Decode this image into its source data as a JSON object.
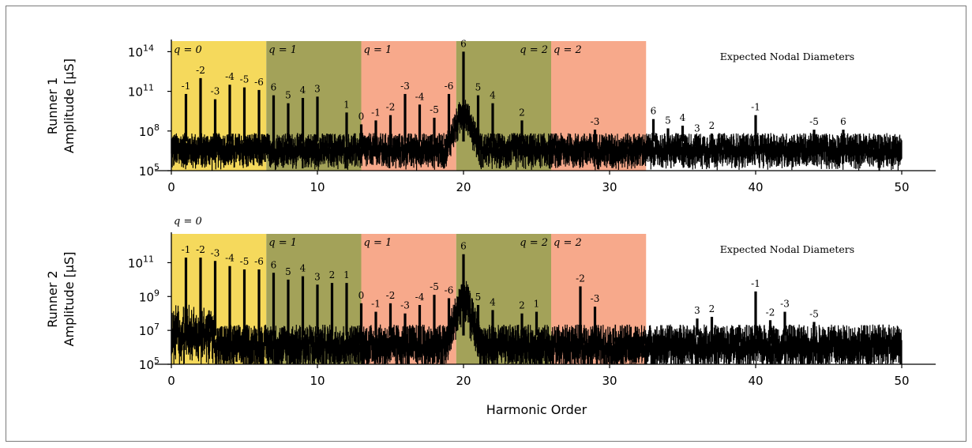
{
  "chart_data": [
    {
      "type": "line",
      "ylabel_lines": [
        "Runner 1",
        "Amplitude [μS]"
      ],
      "xlabel": "",
      "xlim": [
        0,
        50
      ],
      "xticks": [
        0,
        10,
        20,
        30,
        40,
        50
      ],
      "yscale": "log",
      "ylim_exp": [
        5,
        14.8
      ],
      "yticks_exp": [
        5,
        8,
        11,
        14
      ],
      "noise_floor_exp": 7.2,
      "bands": [
        {
          "x0": 0,
          "x1": 6.5,
          "color": "#f5d95c",
          "label": "q = 0",
          "label_side": "left"
        },
        {
          "x0": 6.5,
          "x1": 13,
          "color": "#a3a259",
          "label": "q = 1",
          "label_side": "left"
        },
        {
          "x0": 13,
          "x1": 19.5,
          "color": "#f7a98b",
          "label": "q = 1",
          "label_side": "left"
        },
        {
          "x0": 19.5,
          "x1": 26,
          "color": "#a3a259",
          "label": "q = 2",
          "label_side": "right"
        },
        {
          "x0": 26,
          "x1": 32.5,
          "color": "#f7a98b",
          "label": "q = 2",
          "label_side": "left"
        }
      ],
      "legend_title": "Expected Nodal Diameters",
      "peaks": [
        {
          "x": 1,
          "y_exp": 10.8,
          "label": "-1"
        },
        {
          "x": 2,
          "y_exp": 12.0,
          "label": "-2"
        },
        {
          "x": 3,
          "y_exp": 10.4,
          "label": "-3"
        },
        {
          "x": 4,
          "y_exp": 11.5,
          "label": "-4"
        },
        {
          "x": 5,
          "y_exp": 11.3,
          "label": "-5"
        },
        {
          "x": 6,
          "y_exp": 11.1,
          "label": "-6"
        },
        {
          "x": 7,
          "y_exp": 10.7,
          "label": "6"
        },
        {
          "x": 8,
          "y_exp": 10.1,
          "label": "5"
        },
        {
          "x": 9,
          "y_exp": 10.5,
          "label": "4"
        },
        {
          "x": 10,
          "y_exp": 10.6,
          "label": "3"
        },
        {
          "x": 12,
          "y_exp": 9.4,
          "label": "1"
        },
        {
          "x": 13,
          "y_exp": 8.5,
          "label": "0"
        },
        {
          "x": 14,
          "y_exp": 8.8,
          "label": "-1"
        },
        {
          "x": 15,
          "y_exp": 9.2,
          "label": "-2"
        },
        {
          "x": 16,
          "y_exp": 10.8,
          "label": "-3"
        },
        {
          "x": 17,
          "y_exp": 10.0,
          "label": "-4"
        },
        {
          "x": 18,
          "y_exp": 9.0,
          "label": "-5"
        },
        {
          "x": 19,
          "y_exp": 10.8,
          "label": "-6"
        },
        {
          "x": 20,
          "y_exp": 14.0,
          "label": "6"
        },
        {
          "x": 21,
          "y_exp": 10.7,
          "label": "5"
        },
        {
          "x": 22,
          "y_exp": 10.1,
          "label": "4"
        },
        {
          "x": 24,
          "y_exp": 8.8,
          "label": "2"
        },
        {
          "x": 29,
          "y_exp": 8.1,
          "label": "-3"
        },
        {
          "x": 33,
          "y_exp": 8.9,
          "label": "6"
        },
        {
          "x": 34,
          "y_exp": 8.2,
          "label": "5"
        },
        {
          "x": 35,
          "y_exp": 8.4,
          "label": "4"
        },
        {
          "x": 36,
          "y_exp": 7.6,
          "label": "3"
        },
        {
          "x": 37,
          "y_exp": 7.8,
          "label": "2"
        },
        {
          "x": 40,
          "y_exp": 9.2,
          "label": "-1"
        },
        {
          "x": 44,
          "y_exp": 8.1,
          "label": "-5"
        },
        {
          "x": 46,
          "y_exp": 8.1,
          "label": "6"
        }
      ]
    },
    {
      "type": "line",
      "ylabel_lines": [
        "Runner 2",
        "Amplitude [μS]"
      ],
      "xlabel": "Harmonic Order",
      "xlim": [
        0,
        50
      ],
      "xticks": [
        0,
        10,
        20,
        30,
        40,
        50
      ],
      "yscale": "log",
      "ylim_exp": [
        5,
        12.7
      ],
      "yticks_exp": [
        5,
        7,
        9,
        11
      ],
      "noise_floor_exp": 6.7,
      "bands": [
        {
          "x0": 0,
          "x1": 6.5,
          "color": "#f5d95c",
          "label": "q = 0",
          "label_side": "above"
        },
        {
          "x0": 6.5,
          "x1": 13,
          "color": "#a3a259",
          "label": "q = 1",
          "label_side": "left"
        },
        {
          "x0": 13,
          "x1": 19.5,
          "color": "#f7a98b",
          "label": "q = 1",
          "label_side": "left"
        },
        {
          "x0": 19.5,
          "x1": 26,
          "color": "#a3a259",
          "label": "q = 2",
          "label_side": "right"
        },
        {
          "x0": 26,
          "x1": 32.5,
          "color": "#f7a98b",
          "label": "q = 2",
          "label_side": "left"
        }
      ],
      "legend_title": "Expected Nodal Diameters",
      "peaks": [
        {
          "x": 1,
          "y_exp": 11.3,
          "label": "-1"
        },
        {
          "x": 2,
          "y_exp": 11.3,
          "label": "-2"
        },
        {
          "x": 3,
          "y_exp": 11.1,
          "label": "-3"
        },
        {
          "x": 4,
          "y_exp": 10.8,
          "label": "-4"
        },
        {
          "x": 5,
          "y_exp": 10.6,
          "label": "-5"
        },
        {
          "x": 6,
          "y_exp": 10.6,
          "label": "-6"
        },
        {
          "x": 7,
          "y_exp": 10.4,
          "label": "6"
        },
        {
          "x": 8,
          "y_exp": 10.0,
          "label": "5"
        },
        {
          "x": 9,
          "y_exp": 10.2,
          "label": "4"
        },
        {
          "x": 10,
          "y_exp": 9.7,
          "label": "3"
        },
        {
          "x": 11,
          "y_exp": 9.8,
          "label": "2"
        },
        {
          "x": 12,
          "y_exp": 9.8,
          "label": "1"
        },
        {
          "x": 13,
          "y_exp": 8.6,
          "label": "0"
        },
        {
          "x": 14,
          "y_exp": 8.1,
          "label": "-1"
        },
        {
          "x": 15,
          "y_exp": 8.6,
          "label": "-2"
        },
        {
          "x": 16,
          "y_exp": 8.0,
          "label": "-3"
        },
        {
          "x": 17,
          "y_exp": 8.5,
          "label": "-4"
        },
        {
          "x": 18,
          "y_exp": 9.1,
          "label": "-5"
        },
        {
          "x": 19,
          "y_exp": 8.9,
          "label": "-6"
        },
        {
          "x": 20,
          "y_exp": 11.5,
          "label": "6"
        },
        {
          "x": 21,
          "y_exp": 8.5,
          "label": "5"
        },
        {
          "x": 22,
          "y_exp": 8.2,
          "label": "4"
        },
        {
          "x": 24,
          "y_exp": 8.0,
          "label": "2"
        },
        {
          "x": 25,
          "y_exp": 8.1,
          "label": "1"
        },
        {
          "x": 28,
          "y_exp": 9.6,
          "label": "-2"
        },
        {
          "x": 29,
          "y_exp": 8.4,
          "label": "-3"
        },
        {
          "x": 36,
          "y_exp": 7.7,
          "label": "3"
        },
        {
          "x": 37,
          "y_exp": 7.8,
          "label": "2"
        },
        {
          "x": 40,
          "y_exp": 9.3,
          "label": "-1"
        },
        {
          "x": 41,
          "y_exp": 7.6,
          "label": "-2"
        },
        {
          "x": 42,
          "y_exp": 8.1,
          "label": "-3"
        },
        {
          "x": 44,
          "y_exp": 7.5,
          "label": "-5"
        }
      ]
    }
  ]
}
